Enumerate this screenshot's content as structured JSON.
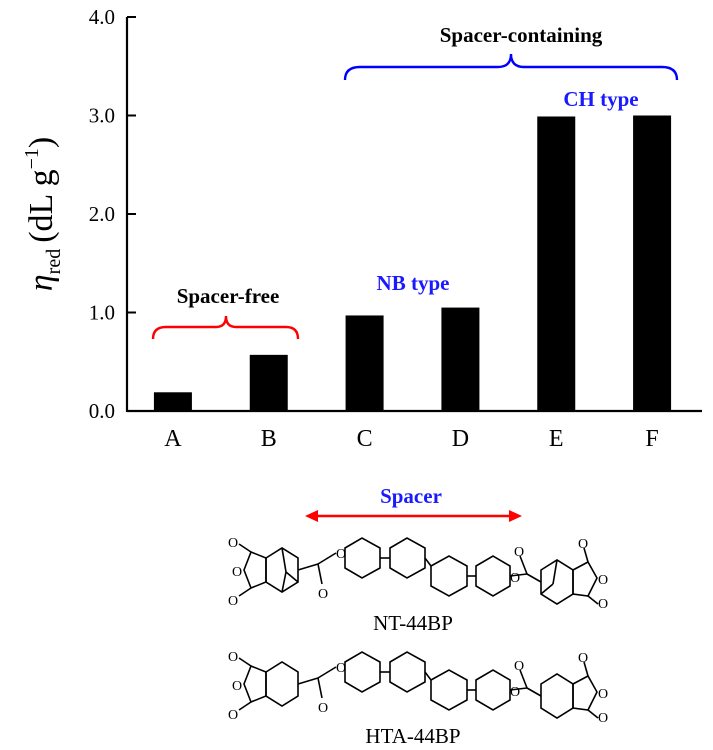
{
  "chart_data": {
    "type": "bar",
    "categories": [
      "A",
      "B",
      "C",
      "D",
      "E",
      "F"
    ],
    "values": [
      0.19,
      0.57,
      0.97,
      1.05,
      2.99,
      3.0
    ],
    "ylabel": "η",
    "ylabel_sub": "red",
    "ylabel_unit": "(dL g",
    "ylabel_sup": "−1",
    "ylabel_close": ")",
    "ylim": [
      0,
      4
    ],
    "yticks": [
      "0.0",
      "1.0",
      "2.0",
      "3.0",
      "4.0"
    ],
    "ytick_values": [
      0,
      1,
      2,
      3,
      4
    ],
    "grid": false,
    "bar_color": "#000000",
    "annotations": {
      "spacer_free": "Spacer-free",
      "spacer_containing": "Spacer-containing",
      "nb_type": "NB type",
      "ch_type": "CH type"
    }
  },
  "colors": {
    "red_bracket": "#ff0000",
    "blue_bracket": "#0000ff",
    "blue_text": "#1a1aff"
  },
  "structures": {
    "spacer_label": "Spacer",
    "compound1_name": "NT-44BP",
    "compound2_name": "HTA-44BP"
  }
}
